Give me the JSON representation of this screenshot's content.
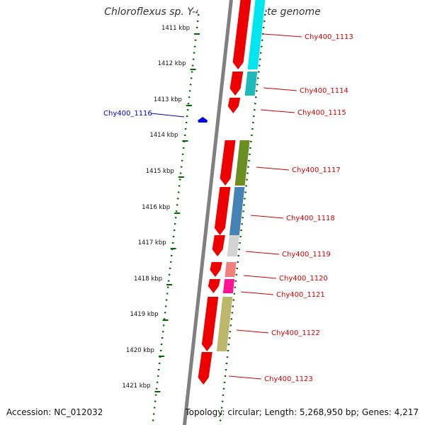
{
  "map": {
    "title": "Chloroflexus sp. Y-400-fl, complete genome",
    "accession": "Accession: NC_012032",
    "stats": "Topology: circular; Length: 5,268,950 bp; Genes: 4,217",
    "kbp_ticks": [
      "1411 kbp",
      "1412 kbp",
      "1413 kbp",
      "1414 kbp",
      "1415 kbp",
      "1416 kbp",
      "1417 kbp",
      "1418 kbp",
      "1419 kbp",
      "1420 kbp",
      "1421 kbp"
    ],
    "genes": [
      {
        "id": "Chy400_1113",
        "strand": "+",
        "cog_color": "#00e5ee"
      },
      {
        "id": "Chy400_1114",
        "strand": "+",
        "cog_color": "#1fb9b9"
      },
      {
        "id": "Chy400_1115",
        "strand": "+",
        "cog_color": ""
      },
      {
        "id": "Chy400_1116",
        "strand": "-",
        "cog_color": "#0000ee"
      },
      {
        "id": "Chy400_1117",
        "strand": "+",
        "cog_color": "#6b8e23"
      },
      {
        "id": "Chy400_1118",
        "strand": "+",
        "cog_color": "#4682b4"
      },
      {
        "id": "Chy400_1119",
        "strand": "+",
        "cog_color": "#d3d3d3"
      },
      {
        "id": "Chy400_1120",
        "strand": "+",
        "cog_color": "#f08080"
      },
      {
        "id": "Chy400_1121",
        "strand": "+",
        "cog_color": "#ff1493"
      },
      {
        "id": "Chy400_1122",
        "strand": "+",
        "cog_color": "#bdb76b"
      },
      {
        "id": "Chy400_1123",
        "strand": "+",
        "cog_color": ""
      }
    ],
    "colors": {
      "gene_arrow": "#ee0000",
      "backbone": "#808080",
      "tick": "#006400",
      "plus_label": "#cc0000",
      "minus_label": "#0000cc"
    }
  }
}
